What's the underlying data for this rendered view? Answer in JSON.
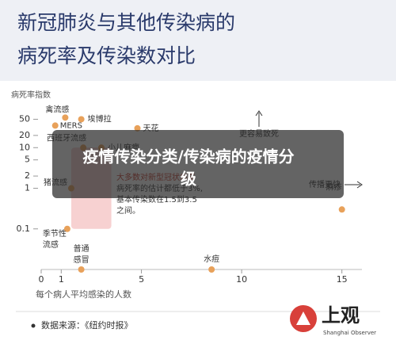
{
  "header": {
    "title": [
      "新冠肺炎与其他传染病的",
      "病死率及传染数对比"
    ]
  },
  "chart_data": {
    "type": "scatter",
    "ylabel": "病死率指数",
    "xlabel": "每个病人平均感染的人数",
    "labels": [
      [
        "禽流感"
      ],
      [
        "埃博拉"
      ],
      [
        "MERS"
      ],
      [
        "天花"
      ],
      [
        "西班牙流感"
      ],
      [
        "小儿麻痹"
      ],
      [
        "猪流感"
      ],
      [
        "季节性",
        "流感"
      ],
      [
        "普通",
        "感冒"
      ],
      [
        "水痘"
      ],
      [
        "麻疹"
      ]
    ],
    "x": [
      1.2,
      2.0,
      0.7,
      4.8,
      2.1,
      3.0,
      1.5,
      1.3,
      2.0,
      8.5,
      15
    ],
    "values": [
      55,
      50,
      35,
      30,
      10,
      10,
      1,
      0.1,
      0.01,
      0.01,
      0.3
    ],
    "color": "#e8a15a",
    "log_y": true,
    "xlim": [
      0,
      16
    ],
    "ylim": [
      0.01,
      80
    ],
    "xticks": [
      0,
      1,
      5,
      10,
      15
    ],
    "yticks": [
      50,
      20,
      10,
      5,
      2,
      1,
      0.1
    ],
    "region": {
      "x": [
        1.5,
        3.5
      ],
      "y": [
        0.1,
        10
      ],
      "color": "#f5c6c6"
    },
    "note": [
      "大多数对新型冠状病毒",
      "病死率的估计都低于3%,",
      "基本传染数在1.5到3.5",
      "之间。"
    ],
    "annotations": [
      "更容易致死",
      "传播更快"
    ]
  },
  "banner": [
    "疫情传染分类/传染病的疫情分",
    "级"
  ],
  "footer": {
    "source": "数据来源：《纽约时报》",
    "logo": "上观",
    "logo_sub": "Shanghai Observer"
  }
}
